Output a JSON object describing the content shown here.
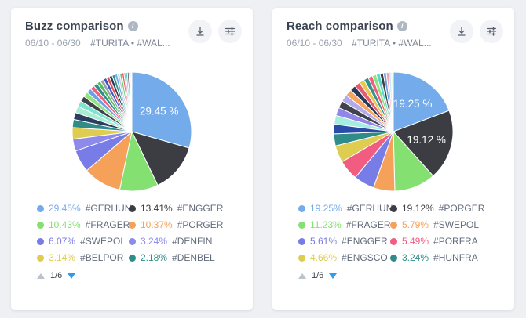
{
  "theme": {
    "page_bg": "#EEF0F3",
    "card_bg": "#FFFFFF",
    "title_color": "#3A4350",
    "subtitle_date_color": "#99A3B1",
    "subtitle_tags_color": "#7E8897",
    "icon_color": "#5A616C",
    "icon_btn_bg": "#F1F3F7",
    "info_icon_bg": "#AEB7C2",
    "legend_tag_color": "#626B7B",
    "pager_text_color": "#39424E",
    "pager_active_color": "#2F9BEF",
    "pager_inactive_color": "#BCC2CC",
    "slice_label_color": "#FFFFFF"
  },
  "cards": [
    {
      "title": "Buzz comparison",
      "info_icon": "info",
      "date_range": "06/10 - 06/30",
      "hashtags": "#TURITA • #WAL...",
      "toolbar": {
        "download_icon": "download-arrow",
        "settings_icon": "filter-sliders"
      },
      "legend": [
        {
          "percent": "29.45%",
          "tag": "#GERHUN",
          "color": "#74ABEA"
        },
        {
          "percent": "13.41%",
          "tag": "#ENGGER",
          "color": "#3B3D42"
        },
        {
          "percent": "10.43%",
          "tag": "#FRAGER",
          "color": "#85E072"
        },
        {
          "percent": "10.37%",
          "tag": "#PORGER",
          "color": "#F5A159"
        },
        {
          "percent": "6.07%",
          "tag": "#SWEPOL",
          "color": "#787CE6"
        },
        {
          "percent": "3.24%",
          "tag": "#DENFIN",
          "color": "#8D8AEC"
        },
        {
          "percent": "3.14%",
          "tag": "#BELPOR",
          "color": "#DFCD51"
        },
        {
          "percent": "2.18%",
          "tag": "#DENBEL",
          "color": "#2F8C88"
        }
      ],
      "pagination": {
        "up_icon": "page-up-arrow",
        "label": "1/6",
        "down_icon": "page-down-arrow"
      }
    },
    {
      "title": "Reach comparison",
      "info_icon": "info",
      "date_range": "06/10 - 06/30",
      "hashtags": "#TURITA • #WAL...",
      "toolbar": {
        "download_icon": "download-arrow",
        "settings_icon": "filter-sliders"
      },
      "legend": [
        {
          "percent": "19.25%",
          "tag": "#GERHUN",
          "color": "#74ABEA"
        },
        {
          "percent": "19.12%",
          "tag": "#PORGER",
          "color": "#3B3D42"
        },
        {
          "percent": "11.23%",
          "tag": "#FRAGER",
          "color": "#85E072"
        },
        {
          "percent": "5.79%",
          "tag": "#SWEPOL",
          "color": "#F5A159"
        },
        {
          "percent": "5.61%",
          "tag": "#ENGGER",
          "color": "#787CE6"
        },
        {
          "percent": "5.49%",
          "tag": "#PORFRA",
          "color": "#F15C80"
        },
        {
          "percent": "4.66%",
          "tag": "#ENGSCO",
          "color": "#DFCD51"
        },
        {
          "percent": "3.24%",
          "tag": "#HUNFRA",
          "color": "#2F8C88"
        }
      ],
      "pagination": {
        "up_icon": "page-up-arrow",
        "label": "1/6",
        "down_icon": "page-down-arrow"
      }
    }
  ],
  "chart_data": [
    {
      "type": "pie",
      "title": "Buzz comparison",
      "date_range": "06/10 - 06/30",
      "start_angle": "12-oclock",
      "direction": "clockwise",
      "slices": [
        {
          "name": "#GERHUN",
          "value": 29.45,
          "color": "#74ABEA",
          "label": "29.45 %"
        },
        {
          "name": "#ENGGER",
          "value": 13.41,
          "color": "#3B3D42"
        },
        {
          "name": "#FRAGER",
          "value": 10.43,
          "color": "#85E072"
        },
        {
          "name": "#PORGER",
          "value": 10.37,
          "color": "#F5A159"
        },
        {
          "name": "#SWEPOL",
          "value": 6.07,
          "color": "#787CE6"
        },
        {
          "name": "#DENFIN",
          "value": 3.24,
          "color": "#8D8AEC"
        },
        {
          "name": "#BELPOR",
          "value": 3.14,
          "color": "#DFCD51"
        },
        {
          "name": "#DENBEL",
          "value": 2.18,
          "color": "#2F8C88"
        }
      ],
      "other_slices": [
        {
          "value": 1.9,
          "color": "#2B3E60"
        },
        {
          "value": 1.8,
          "color": "#A9ECD2"
        },
        {
          "value": 1.6,
          "color": "#7FE3D2"
        },
        {
          "value": 1.5,
          "color": "#41434A"
        },
        {
          "value": 1.4,
          "color": "#8FE380"
        },
        {
          "value": 1.3,
          "color": "#6B9FE8"
        },
        {
          "value": 1.2,
          "color": "#F0607F"
        },
        {
          "value": 1.1,
          "color": "#2F8C8C"
        },
        {
          "value": 1.0,
          "color": "#55BB5E"
        },
        {
          "value": 0.95,
          "color": "#9AA2AC"
        },
        {
          "value": 0.9,
          "color": "#3E56C4"
        },
        {
          "value": 0.85,
          "color": "#E05252"
        },
        {
          "value": 0.8,
          "color": "#27395B"
        },
        {
          "value": 0.75,
          "color": "#36918E"
        },
        {
          "value": 0.7,
          "color": "#6FB3E8"
        },
        {
          "value": 0.65,
          "color": "#C7CDD6"
        },
        {
          "value": 0.6,
          "color": "#63C96B"
        },
        {
          "value": 0.55,
          "color": "#E85A6C"
        },
        {
          "value": 0.5,
          "color": "#F291B5"
        },
        {
          "value": 0.45,
          "color": "#56D8C9"
        },
        {
          "value": 0.4,
          "color": "#3B3D42"
        },
        {
          "value": 0.35,
          "color": "#A5A0EC"
        },
        {
          "value": 0.3,
          "color": "#F5C2CF"
        },
        {
          "value": 0.16,
          "color": "#D8F0D2"
        }
      ]
    },
    {
      "type": "pie",
      "title": "Reach comparison",
      "date_range": "06/10 - 06/30",
      "start_angle": "12-oclock",
      "direction": "clockwise",
      "slices": [
        {
          "name": "#GERHUN",
          "value": 19.25,
          "color": "#74ABEA",
          "label": "19.25 %"
        },
        {
          "name": "#PORGER",
          "value": 19.12,
          "color": "#3B3D42",
          "label": "19.12 %"
        },
        {
          "name": "#FRAGER",
          "value": 11.23,
          "color": "#85E072"
        },
        {
          "name": "#SWEPOL",
          "value": 5.79,
          "color": "#F5A159"
        },
        {
          "name": "#ENGGER",
          "value": 5.61,
          "color": "#787CE6"
        },
        {
          "name": "#PORFRA",
          "value": 5.49,
          "color": "#F15C80"
        },
        {
          "name": "#ENGSCO",
          "value": 4.66,
          "color": "#DFCD51"
        },
        {
          "name": "#HUNFRA",
          "value": 3.24,
          "color": "#2F8C88"
        }
      ],
      "other_slices": [
        {
          "value": 2.6,
          "color": "#2B4BA8"
        },
        {
          "value": 2.4,
          "color": "#A5EDE0"
        },
        {
          "value": 2.2,
          "color": "#8F86E8"
        },
        {
          "value": 2.0,
          "color": "#41434A"
        },
        {
          "value": 1.9,
          "color": "#B3AAEE"
        },
        {
          "value": 1.8,
          "color": "#F5A55F"
        },
        {
          "value": 1.6,
          "color": "#27395B"
        },
        {
          "value": 1.5,
          "color": "#E85A6C"
        },
        {
          "value": 1.4,
          "color": "#E5C94F"
        },
        {
          "value": 1.3,
          "color": "#36918E"
        },
        {
          "value": 1.2,
          "color": "#F0607F"
        },
        {
          "value": 1.1,
          "color": "#8FE380"
        },
        {
          "value": 1.0,
          "color": "#56D8C9"
        },
        {
          "value": 0.9,
          "color": "#3B3D42"
        },
        {
          "value": 0.8,
          "color": "#6B9FE8"
        },
        {
          "value": 0.7,
          "color": "#F2A0B8"
        },
        {
          "value": 0.6,
          "color": "#BFE8F5"
        },
        {
          "value": 0.35,
          "color": "#CBEFC6"
        },
        {
          "value": 0.26,
          "color": "#F2EBD8"
        }
      ]
    }
  ]
}
